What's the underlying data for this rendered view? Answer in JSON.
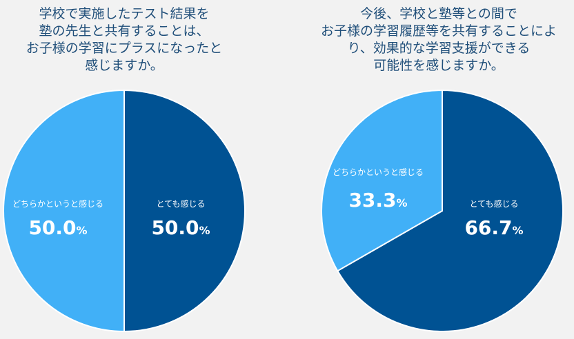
{
  "colors": {
    "dark": "#005293",
    "light": "#41b0f7",
    "stroke": "#ffffff",
    "title": "#1f4e79"
  },
  "chart_data": [
    {
      "type": "pie",
      "title_lines": [
        "学校で実施したテスト結果を",
        "塾の先生と共有することは、",
        "お子様の学習にプラスになったと",
        "感じますか。"
      ],
      "slices": [
        {
          "label": "とても感じる",
          "value": 50.0,
          "display": "50.0",
          "unit": "%",
          "color": "#005293"
        },
        {
          "label": "どちらかというと感じる",
          "value": 50.0,
          "display": "50.0",
          "unit": "%",
          "color": "#41b0f7"
        }
      ]
    },
    {
      "type": "pie",
      "title_lines": [
        "今後、学校と塾等との間で",
        "お子様の学習履歴等を共有することによ",
        "り、効果的な学習支援ができる",
        "可能性を感じますか。"
      ],
      "slices": [
        {
          "label": "とても感じる",
          "value": 66.7,
          "display": "66.7",
          "unit": "%",
          "color": "#005293"
        },
        {
          "label": "どちらかというと感じる",
          "value": 33.3,
          "display": "33.3",
          "unit": "%",
          "color": "#41b0f7"
        }
      ]
    }
  ]
}
